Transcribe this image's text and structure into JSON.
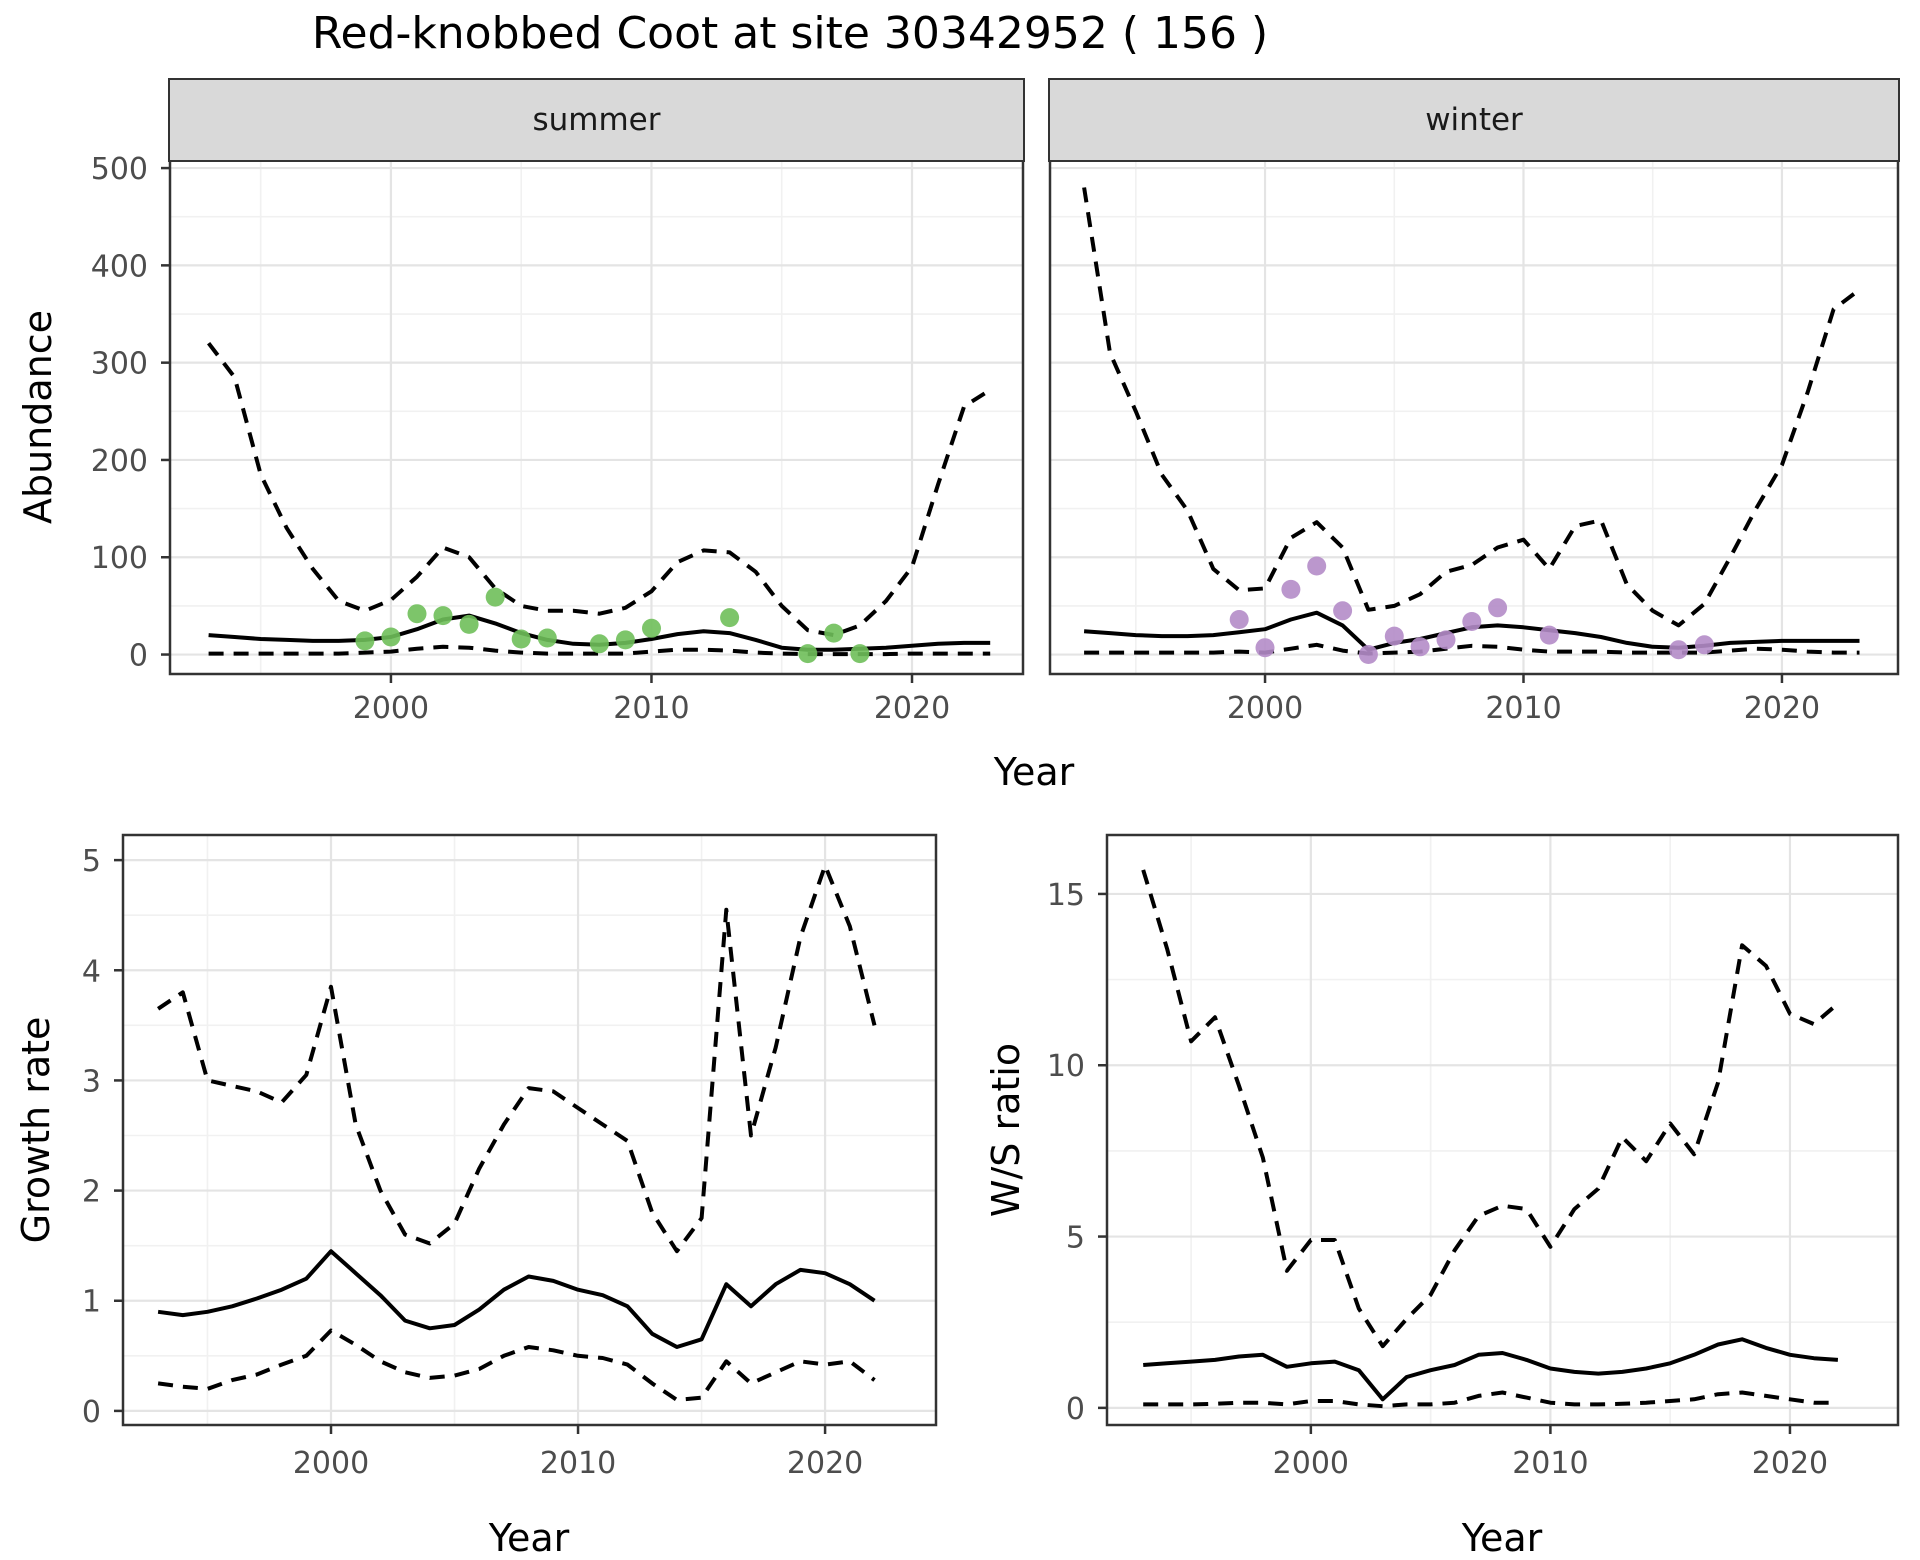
{
  "title": "Red-knobbed Coot at site 30342952 ( 156 )",
  "axis_labels": {
    "x_top": "Year",
    "x_bottom_left": "Year",
    "x_bottom_right": "Year",
    "y_abundance": "Abundance",
    "y_growth": "Growth rate",
    "y_ws": "W/S ratio"
  },
  "facets": {
    "summer": "summer",
    "winter": "winter"
  },
  "colors": {
    "summer_points": "#6fbf5a",
    "winter_points": "#b48cc8",
    "line": "#000000",
    "tick_text": "#4d4d4d",
    "strip_bg": "#d9d9d9",
    "panel_border": "#333333",
    "grid_major": "#e4e4e4",
    "grid_minor": "#f1f1f1"
  },
  "chart_data": [
    {
      "id": "abundance-summer",
      "type": "line",
      "facet_label": "summer",
      "xlabel": "Year",
      "ylabel": "Abundance",
      "xlim": [
        1991.52,
        2024.26
      ],
      "ylim": [
        -20,
        508.3
      ],
      "x_ticks": [
        2000,
        2010,
        2020
      ],
      "x_tick_labels": [
        "2000",
        "2010",
        "2020"
      ],
      "x_minor": [
        1995,
        2005,
        2015
      ],
      "y_ticks": [
        0,
        100,
        200,
        300,
        400,
        500
      ],
      "y_tick_labels": [
        "0",
        "100",
        "200",
        "300",
        "400",
        "500"
      ],
      "y_minor": [
        50,
        150,
        250,
        350,
        450
      ],
      "x": [
        1993,
        1994,
        1995,
        1996,
        1997,
        1998,
        1999,
        2000,
        2001,
        2002,
        2003,
        2004,
        2005,
        2006,
        2007,
        2008,
        2009,
        2010,
        2011,
        2012,
        2013,
        2014,
        2015,
        2016,
        2017,
        2018,
        2019,
        2020,
        2021,
        2022,
        2023
      ],
      "series": [
        {
          "name": "median",
          "style": "solid",
          "values": [
            20,
            18,
            16,
            15,
            14,
            14,
            15,
            18,
            26,
            36,
            40,
            32,
            22,
            15,
            11,
            10,
            12,
            16,
            21,
            24,
            22,
            15,
            7,
            5,
            5,
            6,
            7,
            9,
            11,
            12,
            12
          ]
        },
        {
          "name": "lower_ci",
          "style": "dashed",
          "values": [
            1,
            1,
            1,
            1,
            1,
            1,
            2,
            3,
            6,
            8,
            7,
            4,
            2,
            1,
            1,
            1,
            1,
            3,
            5,
            5,
            4,
            2,
            1,
            0.5,
            0.5,
            0.5,
            0.5,
            1,
            1,
            1,
            1
          ]
        },
        {
          "name": "upper_ci",
          "style": "dashed",
          "values": [
            320,
            285,
            185,
            130,
            88,
            55,
            45,
            56,
            80,
            110,
            100,
            68,
            50,
            45,
            45,
            42,
            48,
            65,
            95,
            107,
            105,
            85,
            50,
            25,
            20,
            30,
            55,
            90,
            175,
            255,
            272
          ]
        }
      ],
      "points": {
        "name": "observations",
        "color_key": "summer_points",
        "xy": [
          [
            1999,
            14
          ],
          [
            2000,
            18
          ],
          [
            2001,
            42
          ],
          [
            2002,
            40
          ],
          [
            2003,
            31
          ],
          [
            2004,
            59
          ],
          [
            2005,
            16
          ],
          [
            2006,
            17
          ],
          [
            2008,
            11
          ],
          [
            2009,
            15
          ],
          [
            2010,
            27
          ],
          [
            2013,
            38
          ],
          [
            2016,
            1
          ],
          [
            2017,
            22
          ],
          [
            2018,
            1
          ]
        ]
      }
    },
    {
      "id": "abundance-winter",
      "type": "line",
      "facet_label": "winter",
      "xlabel": "Year",
      "ylabel": "Abundance",
      "xlim": [
        1991.68,
        2024.49
      ],
      "ylim": [
        -20,
        508.3
      ],
      "x_ticks": [
        2000,
        2010,
        2020
      ],
      "x_tick_labels": [
        "2000",
        "2010",
        "2020"
      ],
      "x_minor": [
        1995,
        2005,
        2015
      ],
      "y_ticks": [
        0,
        100,
        200,
        300,
        400,
        500
      ],
      "y_tick_labels": [
        "0",
        "100",
        "200",
        "300",
        "400",
        "500"
      ],
      "y_minor": [
        50,
        150,
        250,
        350,
        450
      ],
      "x": [
        1993,
        1994,
        1995,
        1996,
        1997,
        1998,
        1999,
        2000,
        2001,
        2002,
        2003,
        2004,
        2005,
        2006,
        2007,
        2008,
        2009,
        2010,
        2011,
        2012,
        2013,
        2014,
        2015,
        2016,
        2017,
        2018,
        2019,
        2020,
        2021,
        2022,
        2023
      ],
      "series": [
        {
          "name": "median",
          "style": "solid",
          "values": [
            24,
            22,
            20,
            19,
            19,
            20,
            23,
            26,
            36,
            43,
            30,
            5,
            12,
            16,
            22,
            28,
            30,
            28,
            25,
            22,
            18,
            12,
            8,
            7,
            9,
            12,
            13,
            14,
            14,
            14,
            14
          ]
        },
        {
          "name": "lower_ci",
          "style": "dashed",
          "values": [
            2,
            2,
            2,
            2,
            2,
            2,
            3,
            2,
            6,
            10,
            4,
            1,
            2,
            3,
            6,
            9,
            8,
            5,
            3,
            3,
            3,
            2,
            2,
            2,
            2,
            4,
            6,
            5,
            3,
            2,
            2
          ]
        },
        {
          "name": "upper_ci",
          "style": "dashed",
          "values": [
            480,
            310,
            250,
            185,
            148,
            88,
            66,
            68,
            120,
            136,
            110,
            46,
            50,
            62,
            85,
            92,
            110,
            118,
            88,
            132,
            138,
            72,
            45,
            30,
            52,
            100,
            150,
            195,
            270,
            355,
            375
          ]
        }
      ],
      "points": {
        "name": "observations",
        "color_key": "winter_points",
        "xy": [
          [
            1999,
            36
          ],
          [
            2000,
            7
          ],
          [
            2001,
            67
          ],
          [
            2002,
            91
          ],
          [
            2003,
            45
          ],
          [
            2004,
            0
          ],
          [
            2005,
            19
          ],
          [
            2006,
            8
          ],
          [
            2007,
            15
          ],
          [
            2008,
            34
          ],
          [
            2009,
            48
          ],
          [
            2011,
            20
          ],
          [
            2016,
            5
          ],
          [
            2017,
            10
          ]
        ]
      }
    },
    {
      "id": "growth-rate",
      "type": "line",
      "facet_label": "",
      "xlabel": "Year",
      "ylabel": "Growth rate",
      "xlim": [
        1991.58,
        2024.49
      ],
      "ylim": [
        -0.128,
        5.228
      ],
      "x_ticks": [
        2000,
        2010,
        2020
      ],
      "x_tick_labels": [
        "2000",
        "2010",
        "2020"
      ],
      "x_minor": [
        1995,
        2005,
        2015
      ],
      "y_ticks": [
        0,
        1,
        2,
        3,
        4,
        5
      ],
      "y_tick_labels": [
        "0",
        "1",
        "2",
        "3",
        "4",
        "5"
      ],
      "y_minor": [
        0.5,
        1.5,
        2.5,
        3.5,
        4.5
      ],
      "x": [
        1993,
        1994,
        1995,
        1996,
        1997,
        1998,
        1999,
        2000,
        2001,
        2002,
        2003,
        2004,
        2005,
        2006,
        2007,
        2008,
        2009,
        2010,
        2011,
        2012,
        2013,
        2014,
        2015,
        2016,
        2017,
        2018,
        2019,
        2020,
        2021,
        2022
      ],
      "series": [
        {
          "name": "median",
          "style": "solid",
          "values": [
            0.9,
            0.87,
            0.9,
            0.95,
            1.02,
            1.1,
            1.2,
            1.45,
            1.25,
            1.05,
            0.82,
            0.75,
            0.78,
            0.92,
            1.1,
            1.22,
            1.18,
            1.1,
            1.05,
            0.95,
            0.7,
            0.58,
            0.65,
            1.15,
            0.95,
            1.15,
            1.28,
            1.25,
            1.15,
            1.0
          ]
        },
        {
          "name": "lower_ci",
          "style": "dashed",
          "values": [
            0.25,
            0.22,
            0.2,
            0.28,
            0.33,
            0.42,
            0.5,
            0.73,
            0.6,
            0.45,
            0.35,
            0.3,
            0.32,
            0.38,
            0.5,
            0.58,
            0.55,
            0.5,
            0.48,
            0.42,
            0.25,
            0.1,
            0.12,
            0.45,
            0.25,
            0.35,
            0.45,
            0.42,
            0.45,
            0.28
          ]
        },
        {
          "name": "upper_ci",
          "style": "dashed",
          "values": [
            3.65,
            3.8,
            3.0,
            2.95,
            2.9,
            2.8,
            3.05,
            3.85,
            2.6,
            2.0,
            1.6,
            1.52,
            1.7,
            2.2,
            2.6,
            2.93,
            2.9,
            2.75,
            2.6,
            2.45,
            1.8,
            1.45,
            1.75,
            4.55,
            2.5,
            3.3,
            4.3,
            4.95,
            4.4,
            3.5
          ]
        }
      ],
      "points": null
    },
    {
      "id": "ws-ratio",
      "type": "line",
      "facet_label": "",
      "xlabel": "Year",
      "ylabel": "W/S ratio",
      "xlim": [
        1991.49,
        2024.51
      ],
      "ylim": [
        -0.5,
        16.72
      ],
      "x_ticks": [
        2000,
        2010,
        2020
      ],
      "x_tick_labels": [
        "2000",
        "2010",
        "2020"
      ],
      "x_minor": [
        1995,
        2005,
        2015
      ],
      "y_ticks": [
        0,
        5,
        10,
        15
      ],
      "y_tick_labels": [
        "0",
        "5",
        "10",
        "15"
      ],
      "y_minor": [
        2.5,
        7.5,
        12.5
      ],
      "x": [
        1993,
        1994,
        1995,
        1996,
        1997,
        1998,
        1999,
        2000,
        2001,
        2002,
        2003,
        2004,
        2005,
        2006,
        2007,
        2008,
        2009,
        2010,
        2011,
        2012,
        2013,
        2014,
        2015,
        2016,
        2017,
        2018,
        2019,
        2020,
        2021,
        2022
      ],
      "series": [
        {
          "name": "median",
          "style": "solid",
          "values": [
            1.25,
            1.3,
            1.35,
            1.4,
            1.5,
            1.55,
            1.2,
            1.3,
            1.35,
            1.1,
            0.25,
            0.9,
            1.1,
            1.25,
            1.55,
            1.6,
            1.4,
            1.15,
            1.05,
            1.0,
            1.05,
            1.15,
            1.3,
            1.55,
            1.85,
            2.0,
            1.75,
            1.55,
            1.45,
            1.4
          ]
        },
        {
          "name": "lower_ci",
          "style": "dashed",
          "values": [
            0.1,
            0.1,
            0.1,
            0.12,
            0.15,
            0.15,
            0.1,
            0.2,
            0.2,
            0.1,
            0.05,
            0.1,
            0.1,
            0.15,
            0.35,
            0.45,
            0.3,
            0.15,
            0.1,
            0.1,
            0.12,
            0.15,
            0.2,
            0.25,
            0.4,
            0.45,
            0.35,
            0.25,
            0.15,
            0.15
          ]
        },
        {
          "name": "upper_ci",
          "style": "dashed",
          "values": [
            15.7,
            13.4,
            10.7,
            11.4,
            9.4,
            7.3,
            4.0,
            4.9,
            4.9,
            2.9,
            1.8,
            2.6,
            3.3,
            4.6,
            5.6,
            5.9,
            5.8,
            4.7,
            5.8,
            6.4,
            7.9,
            7.2,
            8.3,
            7.4,
            9.5,
            13.5,
            12.9,
            11.5,
            11.2,
            11.8
          ]
        }
      ],
      "points": null
    }
  ]
}
